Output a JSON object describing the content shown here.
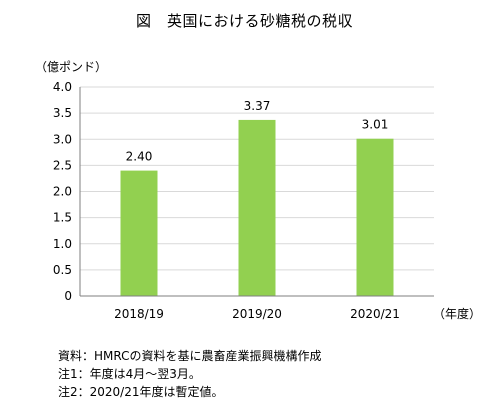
{
  "chart_data": {
    "type": "bar",
    "title": "図　英国における砂糖税の税収",
    "ylabel": "（億ポンド）",
    "xlabel": "（年度）",
    "categories": [
      "2018/19",
      "2019/20",
      "2020/21"
    ],
    "values": [
      2.4,
      3.37,
      3.01
    ],
    "value_labels": [
      "2.40",
      "3.37",
      "3.01"
    ],
    "ylim": [
      0,
      4.0
    ],
    "yticks": [
      0,
      0.5,
      1.0,
      1.5,
      2.0,
      2.5,
      3.0,
      3.5,
      4.0
    ],
    "ytick_labels": [
      "0",
      "0.5",
      "1.0",
      "1.5",
      "2.0",
      "2.5",
      "3.0",
      "3.5",
      "4.0"
    ],
    "grid": true,
    "legend": "none",
    "bar_color": "#92d050",
    "grid_color": "#d9d9d9"
  },
  "notes": [
    "資料：HMRCの資料を基に農畜産業振興機構作成",
    "注1：年度は4月～翌3月。",
    "注2：2020/21年度は暫定値。"
  ]
}
